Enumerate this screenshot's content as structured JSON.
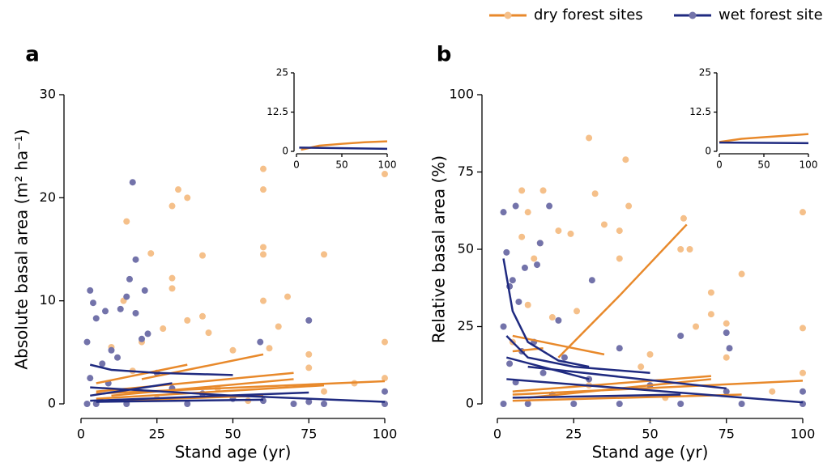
{
  "legend": [
    {
      "label": "dry forest sites",
      "line_color": "#e8892b",
      "point_color": "#f5c08a"
    },
    {
      "label": "wet forest sites",
      "line_color": "#1f2a80",
      "point_color": "#7373aa"
    }
  ],
  "chart_data": [
    {
      "type": "scatter",
      "panel": "a",
      "xlabel": "Stand age (yr)",
      "ylabel": "Absolute basal area (m² ha⁻¹)",
      "xlim": [
        0,
        100
      ],
      "xticks": [
        0,
        25,
        50,
        75,
        100
      ],
      "ylim": [
        0,
        30
      ],
      "yticks": [
        0,
        10,
        20,
        30
      ],
      "series": [
        {
          "type": "scatter",
          "color": "#f5c08a",
          "x": [
            60,
            60,
            100,
            32,
            30,
            35,
            15,
            60,
            60,
            40,
            80,
            23,
            30,
            30,
            60,
            68,
            14,
            40,
            35,
            65,
            75,
            50,
            42,
            27,
            20,
            10,
            100,
            75,
            90,
            100,
            45,
            25,
            55,
            80,
            17,
            62
          ],
          "y": [
            22.8,
            20.8,
            22.3,
            20.8,
            19.2,
            20.0,
            17.7,
            15.2,
            14.5,
            14.4,
            14.5,
            14.6,
            12.2,
            11.2,
            10.0,
            10.4,
            10.0,
            8.5,
            8.1,
            7.5,
            4.8,
            5.2,
            6.9,
            7.3,
            6.0,
            5.5,
            6.0,
            3.5,
            2.0,
            2.5,
            1.5,
            0.5,
            0.3,
            1.2,
            3.2,
            5.4
          ]
        },
        {
          "type": "scatter",
          "color": "#7373aa",
          "x": [
            17,
            18,
            3,
            16,
            21,
            8,
            4,
            15,
            13,
            5,
            18,
            75,
            59,
            20,
            2,
            10,
            12,
            7,
            25,
            3,
            9,
            30,
            40,
            50,
            60,
            75,
            100,
            100,
            2,
            5,
            15,
            35,
            70,
            80,
            22
          ],
          "y": [
            21.5,
            14,
            11,
            12.1,
            11,
            9,
            9.8,
            10.4,
            9.2,
            8.3,
            8.8,
            8.1,
            6.0,
            6.3,
            6.0,
            5.2,
            4.5,
            3.9,
            3.0,
            2.5,
            2.0,
            1.5,
            1.0,
            0.5,
            0.3,
            0.2,
            0.0,
            1.2,
            0.0,
            0.0,
            0.0,
            0.0,
            0.0,
            0.0,
            6.8
          ]
        },
        {
          "type": "line",
          "color": "#e8892b",
          "x": [
            5,
            35
          ],
          "y": [
            2.0,
            3.8
          ]
        },
        {
          "type": "line",
          "color": "#e8892b",
          "x": [
            20,
            40,
            60
          ],
          "y": [
            2.4,
            3.6,
            4.8
          ]
        },
        {
          "type": "line",
          "color": "#e8892b",
          "x": [
            5,
            70
          ],
          "y": [
            1.2,
            3.0
          ]
        },
        {
          "type": "line",
          "color": "#e8892b",
          "x": [
            5,
            100
          ],
          "y": [
            1.0,
            2.2
          ]
        },
        {
          "type": "line",
          "color": "#e8892b",
          "x": [
            10,
            70
          ],
          "y": [
            0.8,
            2.4
          ]
        },
        {
          "type": "line",
          "color": "#e8892b",
          "x": [
            5,
            80
          ],
          "y": [
            0.5,
            1.8
          ]
        },
        {
          "type": "line",
          "color": "#e8892b",
          "x": [
            10,
            60
          ],
          "y": [
            0.3,
            0.8
          ]
        },
        {
          "type": "line",
          "color": "#1f2a80",
          "x": [
            3,
            10,
            25,
            50
          ],
          "y": [
            3.8,
            3.3,
            3.0,
            2.8
          ]
        },
        {
          "type": "line",
          "color": "#1f2a80",
          "x": [
            3,
            30
          ],
          "y": [
            0.8,
            2.0
          ]
        },
        {
          "type": "line",
          "color": "#1f2a80",
          "x": [
            3,
            75
          ],
          "y": [
            0.3,
            1.1
          ]
        },
        {
          "type": "line",
          "color": "#1f2a80",
          "x": [
            3,
            50,
            100
          ],
          "y": [
            1.6,
            0.8,
            0.2
          ]
        },
        {
          "type": "line",
          "color": "#1f2a80",
          "x": [
            5,
            60
          ],
          "y": [
            0.2,
            0.4
          ]
        }
      ],
      "inset": {
        "xlim": [
          0,
          100
        ],
        "xticks": [
          0,
          50,
          100
        ],
        "ylim": [
          0,
          25
        ],
        "yticks": [
          0,
          12.5,
          25
        ],
        "series": [
          {
            "type": "line",
            "color": "#e8892b",
            "x": [
              5,
              25,
              50,
              75,
              100
            ],
            "y": [
              0.5,
              1.8,
              2.4,
              2.9,
              3.2
            ]
          },
          {
            "type": "line",
            "color": "#1f2a80",
            "x": [
              3,
              100
            ],
            "y": [
              1.2,
              0.8
            ]
          }
        ]
      }
    },
    {
      "type": "scatter",
      "panel": "b",
      "xlabel": "Stand age (yr)",
      "ylabel": "Relative basal area (%)",
      "xlim": [
        0,
        100
      ],
      "xticks": [
        0,
        25,
        50,
        75,
        100
      ],
      "ylim": [
        0,
        100
      ],
      "yticks": [
        0,
        25,
        50,
        75,
        100
      ],
      "series": [
        {
          "type": "scatter",
          "color": "#f5c08a",
          "x": [
            30,
            42,
            8,
            15,
            10,
            8,
            24,
            35,
            20,
            40,
            61,
            100,
            43,
            32,
            14,
            60,
            63,
            40,
            12,
            80,
            70,
            100,
            70,
            75,
            65,
            26,
            18,
            10,
            50,
            47,
            100,
            75,
            90,
            30,
            55,
            5
          ],
          "y": [
            86,
            79,
            69,
            69,
            62,
            54,
            55,
            58,
            56,
            56,
            60,
            62,
            64,
            68,
            52,
            50,
            50,
            47,
            47,
            42,
            36,
            24.5,
            29,
            26,
            25,
            30,
            28,
            32,
            16,
            12,
            10,
            15,
            4,
            6,
            2,
            20
          ]
        },
        {
          "type": "scatter",
          "color": "#7373aa",
          "x": [
            2,
            6,
            17,
            3,
            5,
            13,
            9,
            14,
            4,
            7,
            20,
            2,
            12,
            31,
            60,
            75,
            8,
            40,
            22,
            4,
            15,
            30,
            50,
            75,
            100,
            100,
            2,
            10,
            25,
            40,
            60,
            80,
            18,
            6,
            76
          ],
          "y": [
            62,
            64,
            64,
            49,
            40,
            45,
            44,
            52,
            38,
            33,
            27,
            25,
            20,
            40,
            22,
            23,
            17,
            18,
            15,
            13,
            10,
            8,
            6,
            4,
            4,
            0,
            0,
            0,
            0,
            0,
            0,
            0,
            3,
            7,
            18
          ]
        },
        {
          "type": "line",
          "color": "#e8892b",
          "x": [
            5,
            15
          ],
          "y": [
            17,
            18
          ]
        },
        {
          "type": "line",
          "color": "#e8892b",
          "x": [
            5,
            20,
            35
          ],
          "y": [
            22,
            19,
            16
          ]
        },
        {
          "type": "line",
          "color": "#e8892b",
          "x": [
            20,
            40,
            62
          ],
          "y": [
            15,
            35,
            58
          ]
        },
        {
          "type": "line",
          "color": "#e8892b",
          "x": [
            5,
            70
          ],
          "y": [
            4,
            9
          ]
        },
        {
          "type": "line",
          "color": "#e8892b",
          "x": [
            5,
            100
          ],
          "y": [
            3,
            7.5
          ]
        },
        {
          "type": "line",
          "color": "#e8892b",
          "x": [
            10,
            70
          ],
          "y": [
            2,
            8
          ]
        },
        {
          "type": "line",
          "color": "#e8892b",
          "x": [
            5,
            80
          ],
          "y": [
            1,
            3
          ]
        },
        {
          "type": "line",
          "color": "#1f2a80",
          "x": [
            2,
            5,
            10,
            20,
            30
          ],
          "y": [
            47,
            30,
            20,
            14,
            12
          ]
        },
        {
          "type": "line",
          "color": "#1f2a80",
          "x": [
            3,
            10,
            25,
            50
          ],
          "y": [
            22,
            15,
            12,
            10
          ]
        },
        {
          "type": "line",
          "color": "#1f2a80",
          "x": [
            3,
            30
          ],
          "y": [
            15,
            8
          ]
        },
        {
          "type": "line",
          "color": "#1f2a80",
          "x": [
            3,
            100
          ],
          "y": [
            8,
            0.5
          ]
        },
        {
          "type": "line",
          "color": "#1f2a80",
          "x": [
            10,
            75
          ],
          "y": [
            12,
            5
          ]
        },
        {
          "type": "line",
          "color": "#1f2a80",
          "x": [
            5,
            60
          ],
          "y": [
            2,
            3
          ]
        }
      ],
      "inset": {
        "xlim": [
          0,
          100
        ],
        "xticks": [
          0,
          50,
          100
        ],
        "ylim": [
          0,
          25
        ],
        "yticks": [
          0,
          12.5,
          25
        ],
        "series": [
          {
            "type": "line",
            "color": "#e8892b",
            "x": [
              0,
              25,
              50,
              75,
              100
            ],
            "y": [
              3,
              4,
              4.5,
              5,
              5.5
            ]
          },
          {
            "type": "line",
            "color": "#1f2a80",
            "x": [
              0,
              100
            ],
            "y": [
              2.8,
              2.6
            ]
          }
        ]
      }
    }
  ]
}
